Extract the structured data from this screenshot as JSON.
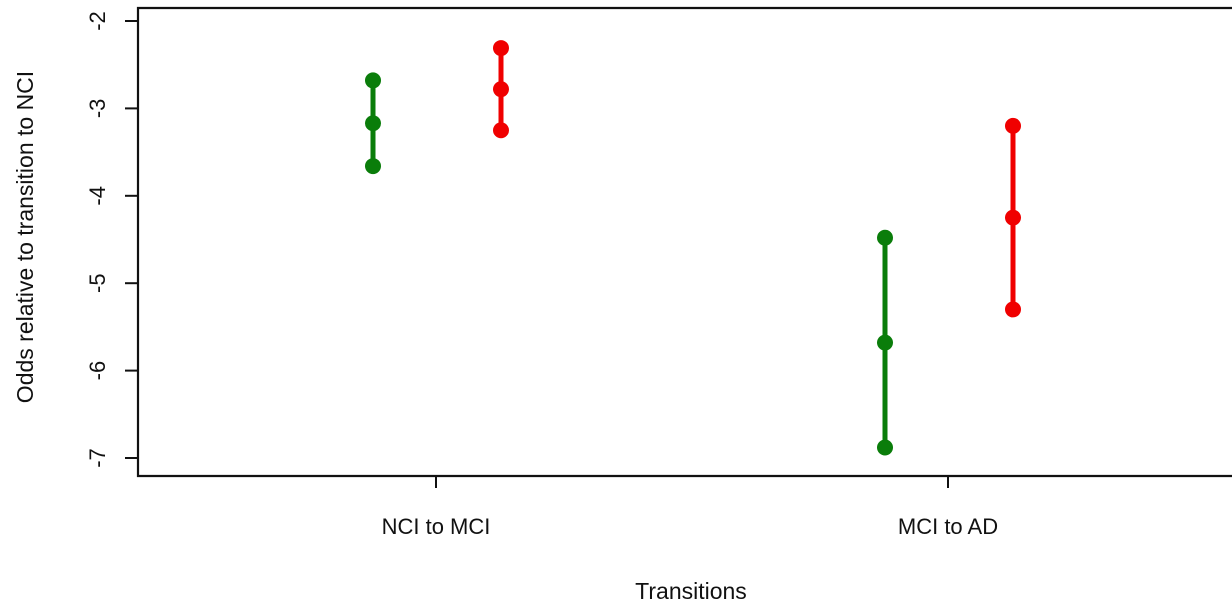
{
  "chart_data": {
    "type": "interval",
    "title": "",
    "xlabel": "Transitions",
    "ylabel": "Odds relative to transition to NCI",
    "categories": [
      "NCI to MCI",
      "MCI to AD"
    ],
    "yticks": [
      "-2",
      "-3",
      "-4",
      "-5",
      "-6",
      "-7"
    ],
    "ytick_values": [
      -2,
      -3,
      -4,
      -5,
      -6,
      -7
    ],
    "ylim": [
      -7.2,
      -1.85
    ],
    "grid": false,
    "legend": "none",
    "series": [
      {
        "color": "#0a7d0a",
        "intervals": [
          {
            "category": "NCI to MCI",
            "lower": -3.66,
            "estimate": -3.17,
            "upper": -2.68
          },
          {
            "category": "MCI to AD",
            "lower": -6.88,
            "estimate": -5.68,
            "upper": -4.48
          }
        ]
      },
      {
        "color": "#f00000",
        "intervals": [
          {
            "category": "NCI to MCI",
            "lower": -3.25,
            "estimate": -2.78,
            "upper": -2.31
          },
          {
            "category": "MCI to AD",
            "lower": -5.3,
            "estimate": -4.25,
            "upper": -3.2
          }
        ]
      }
    ]
  }
}
